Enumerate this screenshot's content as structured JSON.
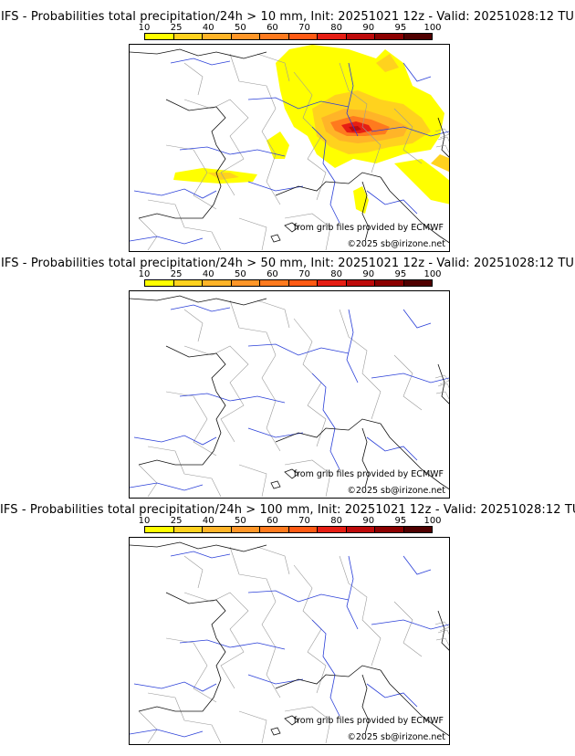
{
  "colorbar": {
    "ticks": [
      "10",
      "25",
      "40",
      "50",
      "60",
      "70",
      "80",
      "90",
      "95",
      "100"
    ],
    "colors": [
      "#ffff00",
      "#ffd21e",
      "#ffb428",
      "#ff9628",
      "#ff7a1e",
      "#ff5a14",
      "#e61e14",
      "#be0a0a",
      "#8c0000",
      "#500000"
    ]
  },
  "panels": [
    {
      "title": "IFS - Probabilities total precipitation/24h > 10 mm, Init: 20251021 12z - Valid: 20251028:12 TU",
      "credit_source": "from grib files provided by ECMWF",
      "credit_copyright": "©2025 sb@irizone.net"
    },
    {
      "title": "IFS - Probabilities total precipitation/24h > 50 mm, Init: 20251021 12z - Valid: 20251028:12 TU",
      "credit_source": "from grib files provided by ECMWF",
      "credit_copyright": "©2025 sb@irizone.net"
    },
    {
      "title": "IFS - Probabilities total precipitation/24h > 100 mm, Init: 20251021 12z - Valid: 20251028:12 TU",
      "credit_source": "from grib files provided by ECMWF",
      "credit_copyright": "©2025 sb@irizone.net"
    }
  ]
}
